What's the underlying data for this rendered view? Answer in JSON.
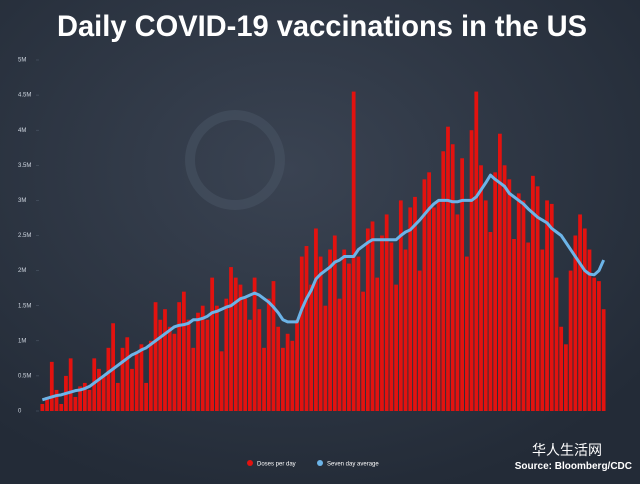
{
  "chart_data": {
    "type": "bar_line",
    "title": "Daily COVID-19 vaccinations in the US",
    "source": "Source: Bloomberg/CDC",
    "watermark": "华人生活网",
    "categories": [
      null,
      null,
      null,
      null,
      null,
      null,
      null,
      null,
      null,
      null,
      null,
      null,
      null,
      null,
      null,
      null,
      null,
      null,
      null,
      null,
      null,
      null,
      null,
      null,
      null,
      null,
      null,
      null,
      null,
      null,
      null,
      null,
      null,
      null,
      null,
      null,
      null,
      null,
      null,
      null,
      null,
      null,
      null,
      null,
      null,
      null,
      null,
      null,
      null,
      null,
      null,
      null,
      null,
      null,
      null,
      null,
      null,
      null,
      null,
      null,
      null,
      null,
      null,
      null,
      null,
      null,
      null,
      null,
      null,
      null,
      null,
      null,
      null,
      null,
      null,
      null,
      null,
      null,
      null,
      null,
      null,
      null,
      null,
      null,
      null,
      null,
      null,
      null,
      null,
      null,
      null,
      null,
      null,
      null,
      null,
      null,
      null,
      null,
      null,
      null,
      null,
      null,
      null,
      null,
      null,
      null,
      null,
      null,
      null,
      null,
      null,
      null,
      null,
      null,
      null,
      null,
      null,
      null,
      null,
      null
    ],
    "series": [
      {
        "name": "Doses per day",
        "type": "bar",
        "color": "#e3120f",
        "values": [
          0.1,
          0.2,
          0.7,
          0.3,
          0.1,
          0.5,
          0.75,
          0.2,
          0.35,
          0.4,
          0.3,
          0.75,
          0.6,
          0.5,
          0.9,
          1.25,
          0.4,
          0.9,
          1.05,
          0.6,
          0.85,
          0.95,
          0.4,
          1.0,
          1.55,
          1.3,
          1.45,
          1.2,
          1.1,
          1.55,
          1.7,
          1.3,
          0.9,
          1.4,
          1.5,
          1.3,
          1.9,
          1.5,
          0.85,
          1.6,
          2.05,
          1.9,
          1.8,
          1.6,
          1.3,
          1.9,
          1.45,
          0.9,
          1.6,
          1.85,
          1.2,
          0.9,
          1.1,
          1.0,
          1.3,
          2.2,
          2.35,
          1.8,
          2.6,
          2.2,
          1.5,
          2.3,
          2.5,
          1.6,
          2.3,
          2.1,
          4.55,
          2.2,
          1.7,
          2.6,
          2.7,
          1.9,
          2.5,
          2.8,
          2.4,
          1.8,
          3.0,
          2.3,
          2.9,
          3.05,
          2.0,
          3.3,
          3.4,
          2.9,
          3.0,
          3.7,
          4.05,
          3.8,
          2.8,
          3.6,
          2.2,
          4.0,
          4.55,
          3.5,
          3.0,
          2.55,
          3.4,
          3.95,
          3.5,
          3.3,
          2.45,
          3.1,
          3.0,
          2.4,
          3.35,
          3.2,
          2.3,
          3.0,
          2.95,
          1.9,
          1.2,
          0.95,
          2.0,
          2.5,
          2.8,
          2.6,
          2.3,
          1.9,
          1.85,
          1.45
        ]
      },
      {
        "name": "Seven day average",
        "type": "line",
        "color": "#6cb4e8",
        "values": [
          0.16,
          0.18,
          0.2,
          0.22,
          0.23,
          0.25,
          0.27,
          0.29,
          0.3,
          0.32,
          0.35,
          0.4,
          0.45,
          0.5,
          0.55,
          0.6,
          0.65,
          0.7,
          0.75,
          0.8,
          0.83,
          0.87,
          0.9,
          0.95,
          1.0,
          1.05,
          1.1,
          1.15,
          1.2,
          1.22,
          1.23,
          1.25,
          1.3,
          1.3,
          1.32,
          1.35,
          1.4,
          1.42,
          1.45,
          1.48,
          1.5,
          1.55,
          1.6,
          1.62,
          1.65,
          1.68,
          1.65,
          1.6,
          1.55,
          1.48,
          1.4,
          1.3,
          1.27,
          1.27,
          1.27,
          1.45,
          1.6,
          1.72,
          1.88,
          1.95,
          2.0,
          2.05,
          2.12,
          2.15,
          2.2,
          2.2,
          2.2,
          2.3,
          2.35,
          2.4,
          2.44,
          2.44,
          2.44,
          2.44,
          2.44,
          2.44,
          2.5,
          2.55,
          2.58,
          2.65,
          2.72,
          2.8,
          2.88,
          2.95,
          3.0,
          3.0,
          3.0,
          2.98,
          2.98,
          3.0,
          3.0,
          3.0,
          3.05,
          3.15,
          3.25,
          3.36,
          3.3,
          3.25,
          3.2,
          3.1,
          3.05,
          3.0,
          2.95,
          2.88,
          2.82,
          2.76,
          2.72,
          2.68,
          2.6,
          2.55,
          2.5,
          2.4,
          2.3,
          2.2,
          2.1,
          2.0,
          1.95,
          1.94,
          2.0,
          2.15
        ]
      }
    ],
    "ylim": [
      0,
      5
    ],
    "yticks": [
      0,
      {
        "value": 0.5,
        "label": "0.5M"
      },
      {
        "value": 1,
        "label": "1M"
      },
      {
        "value": 1.5,
        "label": "1.5M"
      },
      {
        "value": 2,
        "label": "2M"
      },
      {
        "value": 2.5,
        "label": "2.5M"
      },
      {
        "value": 3,
        "label": "3M"
      },
      {
        "value": 3.5,
        "label": "3.5M"
      },
      {
        "value": 4,
        "label": "4M"
      },
      {
        "value": 4.5,
        "label": "4.5M"
      },
      {
        "value": 5,
        "label": "5M"
      }
    ]
  }
}
